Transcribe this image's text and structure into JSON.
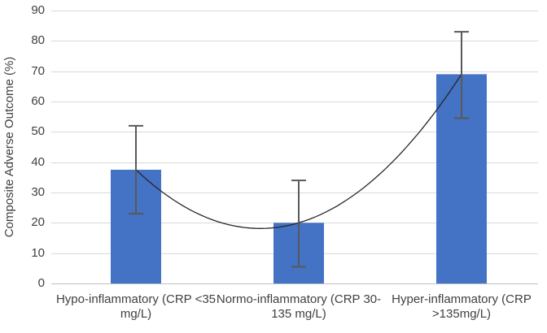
{
  "chart_data": {
    "type": "bar",
    "title": "",
    "xlabel": "",
    "ylabel": "Composite Adverse Outcome (%)",
    "ylim": [
      0,
      90
    ],
    "yticks": [
      0,
      10,
      20,
      30,
      40,
      50,
      60,
      70,
      80,
      90
    ],
    "grid": true,
    "legend": "none",
    "categories": [
      "Hypo-inflammatory (CRP <35 mg/L)",
      "Normo-inflammatory (CRP 30-135 mg/L)",
      "Hyper-inflammatory (CRP >135mg/L)"
    ],
    "values": [
      37.5,
      20,
      69
    ],
    "error_bars": [
      {
        "low": 23,
        "high": 52
      },
      {
        "low": 5.5,
        "high": 34
      },
      {
        "low": 54.5,
        "high": 83
      }
    ],
    "trendline": {
      "type": "polynomial",
      "degree": 2,
      "through_values": [
        37.5,
        20,
        69
      ]
    },
    "colors": {
      "bar": "#4472C4",
      "error_bar": "#595959",
      "trendline": "#262626",
      "gridline": "#D9D9D9",
      "axis_line": "#BFBFBF",
      "text": "#404040",
      "background": "#FFFFFF"
    }
  }
}
